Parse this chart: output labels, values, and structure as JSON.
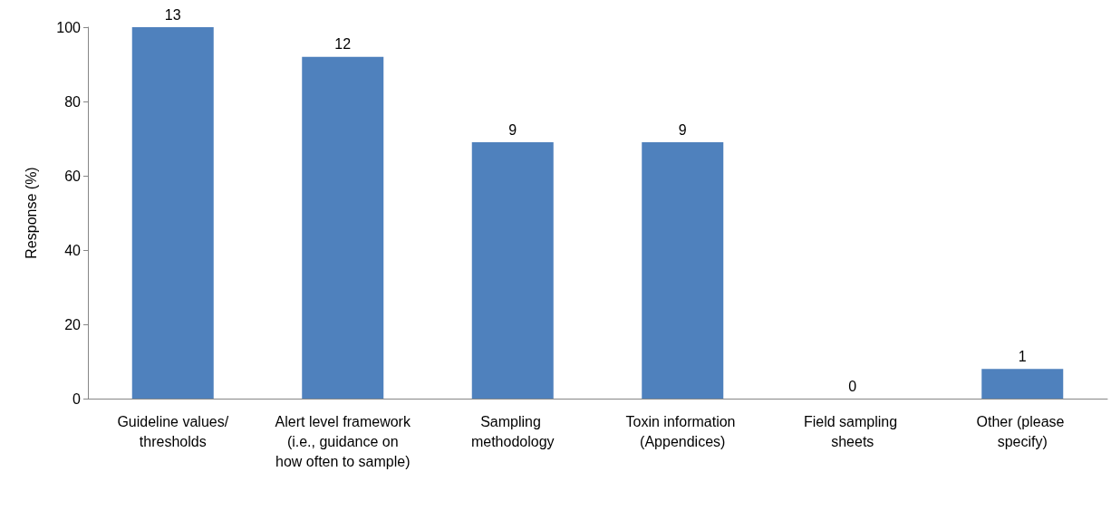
{
  "chart_data": {
    "type": "bar",
    "ylabel": "Response (%)",
    "categories": [
      "Guideline values/thresholds",
      "Alert level framework (i.e., guidance on how often to sample)",
      "Sampling methodology",
      "Toxin information (Appendices)",
      "Field sampling sheets",
      "Other (please specify)"
    ],
    "values": [
      100,
      92,
      69,
      69,
      0,
      8
    ],
    "annotations": [
      {
        "text": "13",
        "x": "Guideline values/thresholds",
        "y": 100
      },
      {
        "text": "12",
        "x": "Alert level framework (i.e., guidance on how often to sample)",
        "y": 92
      },
      {
        "text": "9",
        "x": "Sampling methodology",
        "y": 69
      },
      {
        "text": "9",
        "x": "Toxin information (Appendices)",
        "y": 69
      },
      {
        "text": "0",
        "x": "Field sampling sheets",
        "y": 0
      },
      {
        "text": "1",
        "x": "Other (please specify)",
        "y": 8
      }
    ],
    "color": "#4f81bd",
    "ylim": [
      0,
      100
    ],
    "yticks": [
      0,
      20,
      40,
      60,
      80,
      100
    ],
    "grid": false
  }
}
